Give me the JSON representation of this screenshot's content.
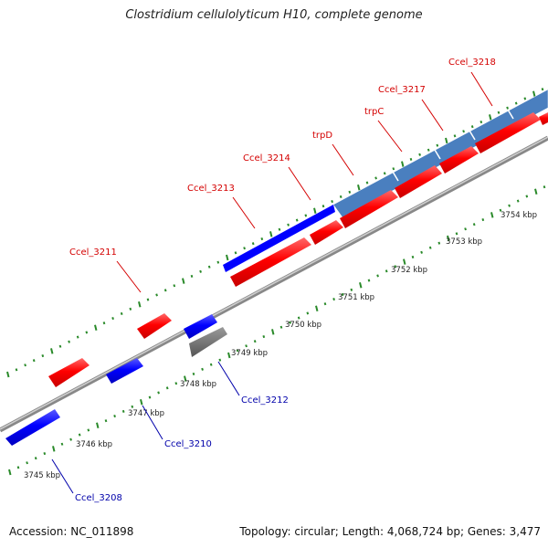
{
  "title": "Clostridium cellulolyticum H10, complete genome",
  "footer": {
    "accession": "Accession: NC_011898",
    "summary": "Topology: circular; Length: 4,068,724 bp; Genes: 3,477"
  },
  "colors": {
    "forward_gene": "#ff0000",
    "reverse_gene": "#0000ff",
    "highlight": "#4a7fbf",
    "pseudo_gene": "#6e6e6e",
    "tick": "#2a8a2a",
    "label_forward": "#d40000",
    "label_reverse": "#0000aa"
  },
  "scale_labels": [
    "3745 kbp",
    "3746 kbp",
    "3747 kbp",
    "3748 kbp",
    "3749 kbp",
    "3750 kbp",
    "3751 kbp",
    "3752 kbp",
    "3753 kbp",
    "3754 kbp"
  ],
  "gene_labels_forward": [
    "Ccel_3211",
    "Ccel_3213",
    "Ccel_3214",
    "trpD",
    "trpC",
    "Ccel_3217",
    "Ccel_3218"
  ],
  "gene_labels_reverse": [
    "Ccel_3208",
    "Ccel_3210",
    "Ccel_3212"
  ]
}
